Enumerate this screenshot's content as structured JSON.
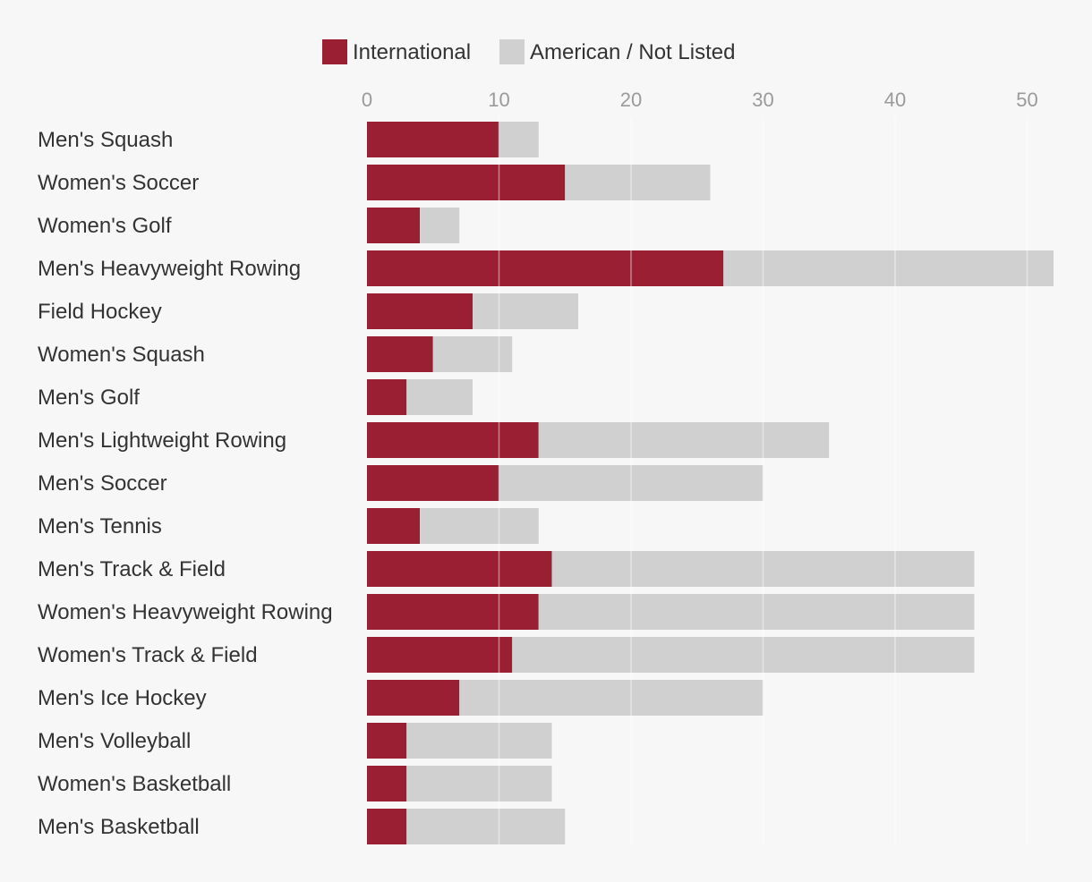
{
  "chart_data": {
    "type": "bar",
    "orientation": "horizontal",
    "stacked": true,
    "title": "",
    "xlabel": "",
    "ylabel": "",
    "xlim": [
      0,
      52
    ],
    "xticks": [
      0,
      10,
      20,
      30,
      40,
      50
    ],
    "grid": true,
    "legend_position": "top",
    "categories": [
      "Men's Squash",
      "Women's Soccer",
      "Women's Golf",
      "Men's Heavyweight Rowing",
      "Field Hockey",
      "Women's Squash",
      "Men's Golf",
      "Men's Lightweight Rowing",
      "Men's Soccer",
      "Men's Tennis",
      "Men's Track & Field",
      "Women's Heavyweight Rowing",
      "Women's Track & Field",
      "Men's Ice Hockey",
      "Men's Volleyball",
      "Women's Basketball",
      "Men's Basketball"
    ],
    "series": [
      {
        "name": "International",
        "color": "#9b1f32",
        "values": [
          10,
          15,
          4,
          27,
          8,
          5,
          3,
          13,
          10,
          4,
          14,
          13,
          11,
          7,
          3,
          3,
          3
        ]
      },
      {
        "name": "American / Not Listed",
        "color": "#d0d0d0",
        "values": [
          3,
          11,
          3,
          25,
          8,
          6,
          5,
          22,
          20,
          9,
          32,
          33,
          35,
          23,
          11,
          11,
          12
        ]
      }
    ]
  }
}
